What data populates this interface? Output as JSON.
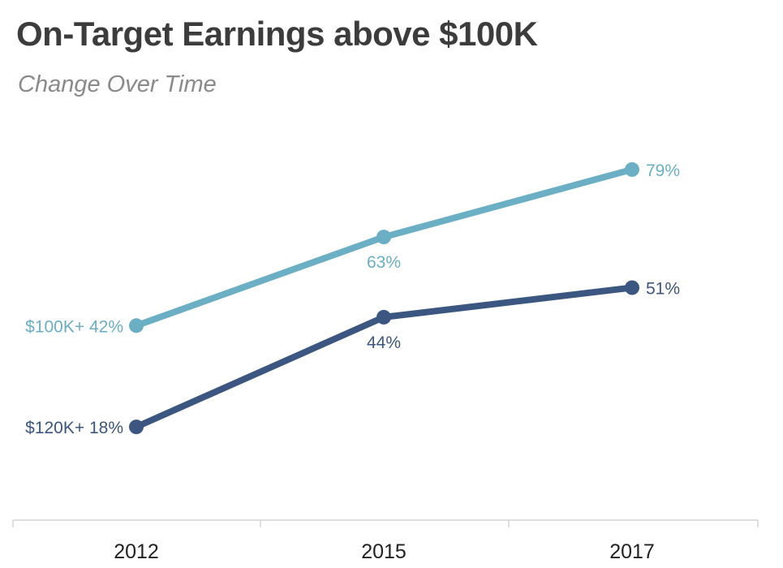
{
  "chart_data": {
    "type": "line",
    "title": "On-Target Earnings above $100K",
    "subtitle": "Change Over Time",
    "categories": [
      "2012",
      "2015",
      "2017"
    ],
    "series": [
      {
        "name": "$100K+",
        "values": [
          42,
          63,
          79
        ],
        "labels": [
          "$100K+ 42%",
          "63%",
          "79%"
        ],
        "color": "#6aafc4"
      },
      {
        "name": "$120K+",
        "values": [
          18,
          44,
          51
        ],
        "labels": [
          "$120K+ 18%",
          "44%",
          "51%"
        ],
        "color": "#3b5680"
      }
    ],
    "xlabel": "",
    "ylabel": "",
    "ylim": [
      0,
      100
    ],
    "grid": false,
    "unit": "%"
  }
}
